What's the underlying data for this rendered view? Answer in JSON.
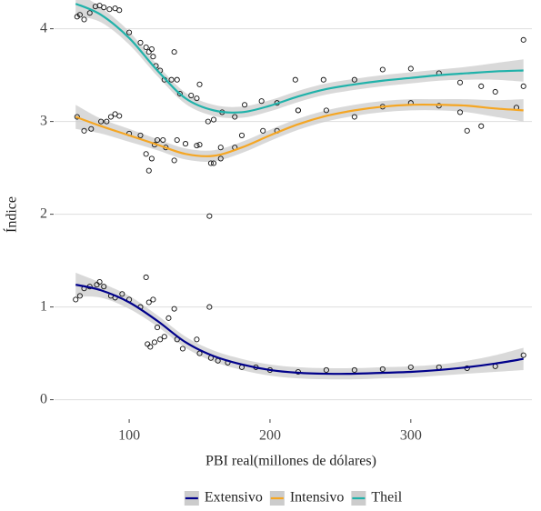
{
  "chart_data": {
    "type": "scatter",
    "x_label": "PBI real(millones de dólares)",
    "y_label": "Índice",
    "xlim": [
      47,
      386
    ],
    "ylim": [
      -0.2,
      4.31
    ],
    "xticks": [
      100,
      200,
      300
    ],
    "yticks": [
      0,
      1,
      2,
      3,
      4
    ],
    "grid": true,
    "legend": "bottom",
    "band_color": "#cccccc",
    "series": [
      {
        "name": "Extensivo",
        "color": "#00008b",
        "x": [
          62,
          65,
          68,
          72,
          77,
          79,
          82,
          87,
          90,
          95,
          100,
          108,
          112,
          113,
          114,
          115,
          117,
          118,
          120,
          122,
          125,
          128,
          132,
          134,
          138,
          148,
          150,
          157,
          158,
          163,
          170,
          180,
          190,
          200,
          220,
          240,
          260,
          280,
          300,
          320,
          340,
          360,
          380
        ],
        "values": [
          1.08,
          1.12,
          1.2,
          1.22,
          1.24,
          1.27,
          1.22,
          1.12,
          1.1,
          1.14,
          1.08,
          1.0,
          1.32,
          0.6,
          1.05,
          0.57,
          1.08,
          0.62,
          0.78,
          0.65,
          0.68,
          0.88,
          0.98,
          0.65,
          0.55,
          0.65,
          0.5,
          1.0,
          0.45,
          0.42,
          0.4,
          0.35,
          0.35,
          0.32,
          0.3,
          0.32,
          0.32,
          0.33,
          0.35,
          0.35,
          0.34,
          0.36,
          0.48
        ],
        "fit_x": [
          62,
          80,
          100,
          120,
          140,
          160,
          180,
          200,
          220,
          240,
          260,
          280,
          300,
          320,
          340,
          360,
          380
        ],
        "fit": [
          1.24,
          1.18,
          1.05,
          0.85,
          0.62,
          0.47,
          0.38,
          0.32,
          0.29,
          0.28,
          0.28,
          0.29,
          0.3,
          0.32,
          0.35,
          0.39,
          0.44
        ],
        "fit_lower": [
          1.11,
          1.1,
          0.98,
          0.79,
          0.56,
          0.41,
          0.32,
          0.26,
          0.23,
          0.22,
          0.22,
          0.23,
          0.24,
          0.26,
          0.28,
          0.3,
          0.32
        ],
        "fit_upper": [
          1.37,
          1.26,
          1.12,
          0.91,
          0.68,
          0.53,
          0.44,
          0.38,
          0.35,
          0.34,
          0.34,
          0.35,
          0.36,
          0.38,
          0.42,
          0.48,
          0.56
        ]
      },
      {
        "name": "Intensivo",
        "color": "#f5a623",
        "x": [
          63,
          68,
          73,
          80,
          84,
          87,
          90,
          93,
          100,
          108,
          112,
          114,
          116,
          118,
          120,
          124,
          126,
          132,
          134,
          140,
          148,
          150,
          157,
          158,
          160,
          165,
          165,
          175,
          180,
          195,
          205,
          220,
          240,
          260,
          280,
          300,
          320,
          335,
          340,
          350,
          375
        ],
        "values": [
          3.05,
          2.9,
          2.92,
          3.0,
          3.0,
          3.05,
          3.08,
          3.06,
          2.87,
          2.85,
          2.65,
          2.47,
          2.6,
          2.75,
          2.8,
          2.8,
          2.72,
          2.58,
          2.8,
          2.76,
          2.74,
          2.75,
          1.98,
          2.55,
          2.55,
          2.6,
          2.72,
          2.72,
          2.85,
          2.9,
          2.9,
          3.12,
          3.12,
          3.05,
          3.16,
          3.2,
          3.17,
          3.1,
          2.9,
          2.95,
          3.15
        ],
        "fit_x": [
          62,
          80,
          100,
          120,
          140,
          160,
          180,
          200,
          220,
          240,
          260,
          280,
          300,
          320,
          340,
          360,
          380
        ],
        "fit": [
          3.05,
          2.95,
          2.85,
          2.75,
          2.65,
          2.63,
          2.72,
          2.85,
          2.97,
          3.06,
          3.12,
          3.16,
          3.18,
          3.18,
          3.17,
          3.14,
          3.12
        ],
        "fit_lower": [
          2.92,
          2.87,
          2.78,
          2.69,
          2.59,
          2.57,
          2.66,
          2.79,
          2.91,
          3.0,
          3.06,
          3.1,
          3.12,
          3.12,
          3.1,
          3.05,
          3.0
        ],
        "fit_upper": [
          3.18,
          3.03,
          2.92,
          2.81,
          2.71,
          2.69,
          2.78,
          2.91,
          3.03,
          3.12,
          3.18,
          3.22,
          3.24,
          3.24,
          3.24,
          3.23,
          3.24
        ]
      },
      {
        "name": "Theil",
        "color": "#20b2aa",
        "x": [
          63,
          65,
          68,
          72,
          76,
          79,
          82,
          86,
          90,
          93,
          100,
          108,
          112,
          114,
          116,
          117,
          119,
          122,
          125,
          130,
          132,
          134,
          136,
          144,
          148,
          150,
          156,
          160,
          166,
          175,
          182,
          194,
          205,
          218,
          220,
          238,
          260,
          280,
          300,
          320,
          335,
          350,
          360,
          380,
          380
        ],
        "values": [
          4.13,
          4.15,
          4.1,
          4.17,
          4.24,
          4.25,
          4.23,
          4.21,
          4.22,
          4.2,
          3.96,
          3.85,
          3.8,
          3.75,
          3.78,
          3.7,
          3.6,
          3.55,
          3.45,
          3.45,
          3.75,
          3.45,
          3.3,
          3.28,
          3.25,
          3.4,
          3.0,
          3.02,
          3.1,
          3.05,
          3.18,
          3.22,
          3.2,
          3.45,
          3.12,
          3.45,
          3.45,
          3.56,
          3.57,
          3.52,
          3.42,
          3.38,
          3.32,
          3.88,
          3.38
        ],
        "fit_x": [
          62,
          80,
          100,
          120,
          140,
          160,
          180,
          200,
          220,
          240,
          260,
          280,
          300,
          320,
          340,
          360,
          380
        ],
        "fit": [
          4.27,
          4.15,
          3.9,
          3.55,
          3.25,
          3.12,
          3.1,
          3.17,
          3.27,
          3.35,
          3.4,
          3.44,
          3.47,
          3.5,
          3.52,
          3.54,
          3.55
        ],
        "fit_lower": [
          4.14,
          4.07,
          3.83,
          3.49,
          3.19,
          3.06,
          3.04,
          3.11,
          3.21,
          3.29,
          3.34,
          3.38,
          3.41,
          3.44,
          3.45,
          3.45,
          3.43
        ],
        "fit_upper": [
          4.4,
          4.23,
          3.97,
          3.61,
          3.31,
          3.18,
          3.16,
          3.23,
          3.33,
          3.41,
          3.46,
          3.5,
          3.53,
          3.56,
          3.59,
          3.63,
          3.67
        ]
      }
    ]
  }
}
